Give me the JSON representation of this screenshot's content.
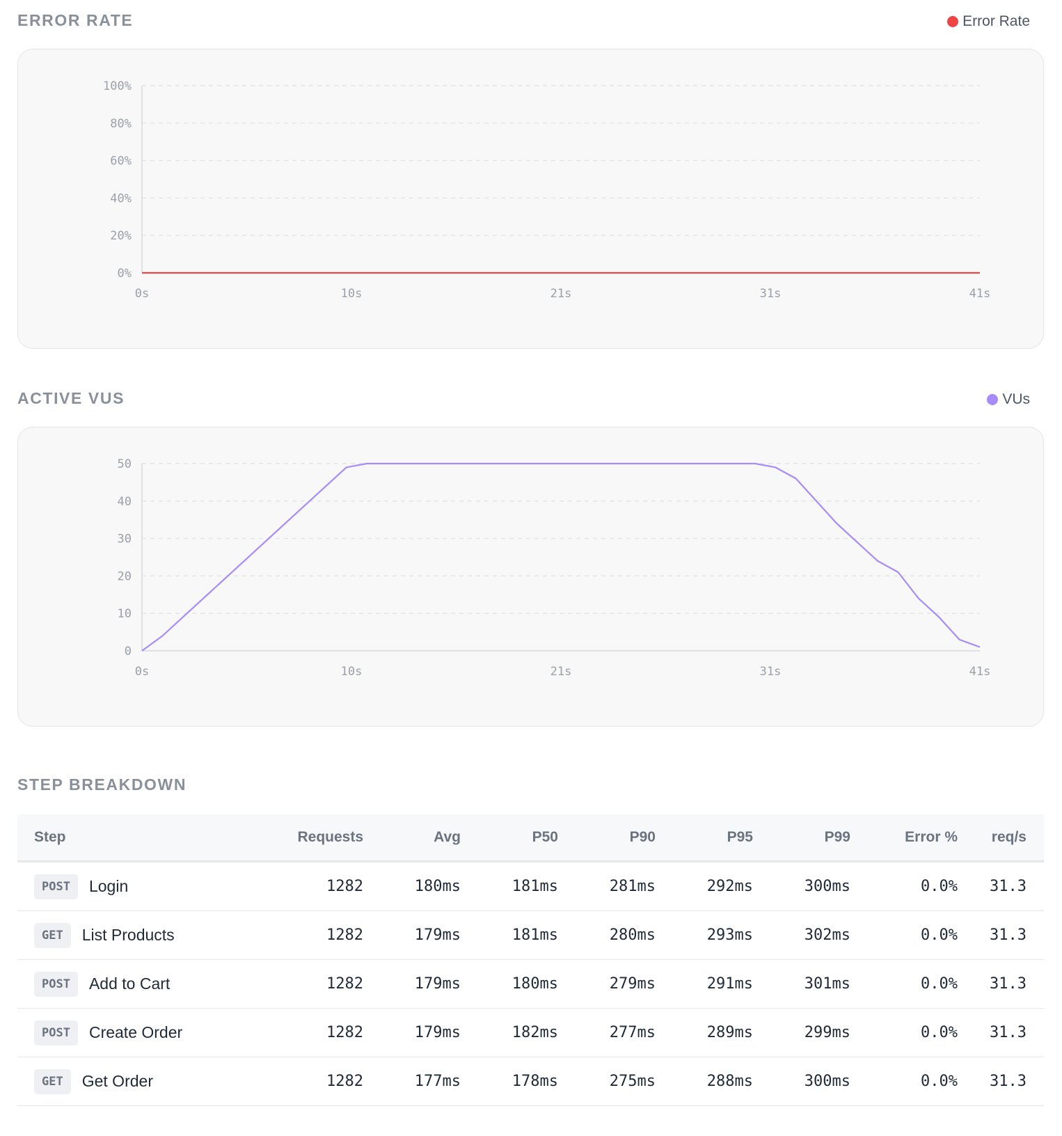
{
  "colors": {
    "error": "#ef4444",
    "vus": "#a78bfa"
  },
  "error_section": {
    "title": "ERROR RATE",
    "legend": "Error Rate"
  },
  "vus_section": {
    "title": "ACTIVE VUS",
    "legend": "VUs"
  },
  "chart_data": [
    {
      "type": "line",
      "x_tick_labels": [
        "0s",
        "10s",
        "21s",
        "31s",
        "41s"
      ],
      "y_tick_labels": [
        "100%",
        "80%",
        "60%",
        "40%",
        "20%",
        "0%"
      ],
      "xlim": [
        0,
        41
      ],
      "ylim": [
        0,
        100
      ],
      "grid": true,
      "legend_position": "top-right",
      "series": [
        {
          "name": "Error Rate",
          "color": "#ef4444",
          "x": [
            0,
            41
          ],
          "y": [
            0,
            0
          ]
        }
      ]
    },
    {
      "type": "line",
      "x_tick_labels": [
        "0s",
        "10s",
        "21s",
        "31s",
        "41s"
      ],
      "y_tick_labels": [
        "50",
        "40",
        "30",
        "20",
        "10",
        "0"
      ],
      "xlim": [
        0,
        41
      ],
      "ylim": [
        0,
        50
      ],
      "grid": true,
      "legend_position": "top-right",
      "series": [
        {
          "name": "VUs",
          "color": "#a78bfa",
          "x": [
            0,
            1,
            10,
            11,
            30,
            31,
            32,
            34,
            36,
            37,
            38,
            39,
            40,
            41
          ],
          "y": [
            0,
            4,
            49,
            50,
            50,
            49,
            46,
            34,
            24,
            21,
            14,
            9,
            3,
            1
          ]
        }
      ]
    }
  ],
  "breakdown": {
    "title": "STEP BREAKDOWN",
    "headers": {
      "step": "Step",
      "requests": "Requests",
      "avg": "Avg",
      "p50": "P50",
      "p90": "P90",
      "p95": "P95",
      "p99": "P99",
      "error": "Error %",
      "rps": "req/s"
    },
    "rows": [
      {
        "method": "POST",
        "name": "Login",
        "requests": "1282",
        "avg": "180ms",
        "p50": "181ms",
        "p90": "281ms",
        "p95": "292ms",
        "p99": "300ms",
        "error": "0.0%",
        "rps": "31.3"
      },
      {
        "method": "GET",
        "name": "List Products",
        "requests": "1282",
        "avg": "179ms",
        "p50": "181ms",
        "p90": "280ms",
        "p95": "293ms",
        "p99": "302ms",
        "error": "0.0%",
        "rps": "31.3"
      },
      {
        "method": "POST",
        "name": "Add to Cart",
        "requests": "1282",
        "avg": "179ms",
        "p50": "180ms",
        "p90": "279ms",
        "p95": "291ms",
        "p99": "301ms",
        "error": "0.0%",
        "rps": "31.3"
      },
      {
        "method": "POST",
        "name": "Create Order",
        "requests": "1282",
        "avg": "179ms",
        "p50": "182ms",
        "p90": "277ms",
        "p95": "289ms",
        "p99": "299ms",
        "error": "0.0%",
        "rps": "31.3"
      },
      {
        "method": "GET",
        "name": "Get Order",
        "requests": "1282",
        "avg": "177ms",
        "p50": "178ms",
        "p90": "275ms",
        "p95": "288ms",
        "p99": "300ms",
        "error": "0.0%",
        "rps": "31.3"
      }
    ]
  }
}
